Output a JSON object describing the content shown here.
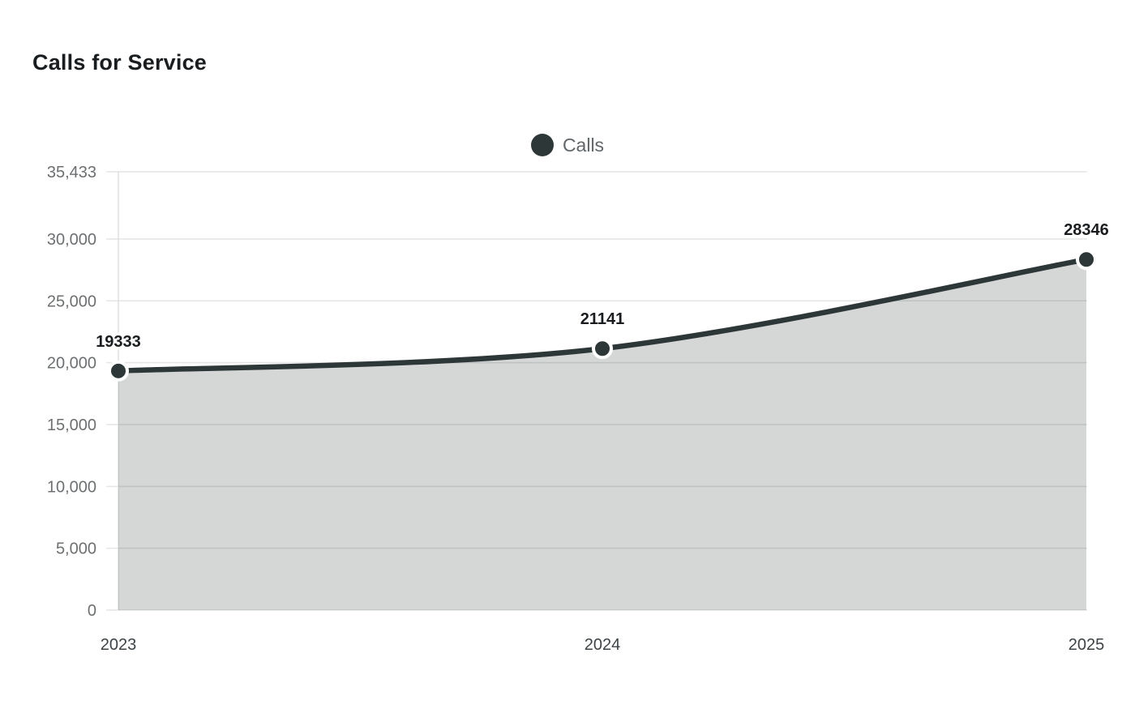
{
  "header": {
    "title": "Calls for Service"
  },
  "legend": {
    "items": [
      {
        "label": "Calls",
        "color": "#2e3738",
        "shape": "circle"
      }
    ],
    "position": "top-center"
  },
  "chart_data": {
    "type": "area",
    "title": "Calls for Service",
    "categories": [
      "2023",
      "2024",
      "2025"
    ],
    "series": [
      {
        "name": "Calls",
        "values": [
          19333,
          21141,
          28346
        ]
      }
    ],
    "data_labels": [
      "19333",
      "21141",
      "28346"
    ],
    "xlabel": "",
    "ylabel": "",
    "ylim": [
      0,
      35433
    ],
    "y_ticks": [
      0,
      5000,
      10000,
      15000,
      20000,
      25000,
      30000,
      35433
    ],
    "y_tick_labels": [
      "0",
      "5,000",
      "10,000",
      "15,000",
      "20,000",
      "25,000",
      "30,000",
      "35,433"
    ],
    "grid": "horizontal",
    "legend_position": "top-center",
    "line_style": "smooth",
    "colors": {
      "line": "#2e3738",
      "area_fill": "rgba(46,55,56,0.2)",
      "point_fill": "#2e3738",
      "point_border": "#ffffff",
      "grid_line": "#e4e5e5",
      "axis_line": "#dddfdf",
      "y_tick_label": "#6d7072",
      "x_tick_label": "#3d4346",
      "data_label": "#1a1d1f",
      "title": "#1a1d1f",
      "legend_label": "#606669"
    }
  }
}
